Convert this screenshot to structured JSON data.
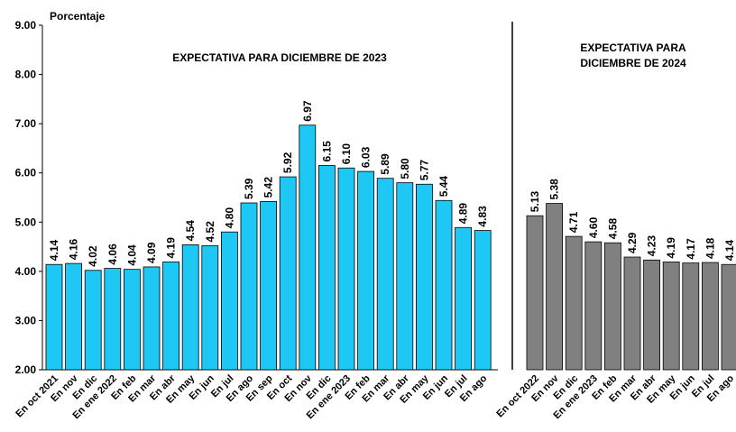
{
  "chart_data": [
    {
      "type": "bar",
      "title": [
        "EXPECTATIVA  PARA  DICIEMBRE DE 2023"
      ],
      "ylabel": "Porcentaje",
      "color": "#1ec8f4",
      "categories": [
        "En oct 2021",
        "En nov",
        "En dic",
        "En ene 2022",
        "En feb",
        "En mar",
        "En abr",
        "En may",
        "En jun",
        "En jul",
        "En ago",
        "En sep",
        "En oct",
        "En nov",
        "En dic",
        "En ene 2023",
        "En feb",
        "En mar",
        "En abr",
        "En may",
        "En jun",
        "En jul",
        "En ago"
      ],
      "values": [
        4.14,
        4.16,
        4.02,
        4.06,
        4.04,
        4.09,
        4.19,
        4.54,
        4.52,
        4.8,
        5.39,
        5.42,
        5.92,
        6.97,
        6.15,
        6.1,
        6.03,
        5.89,
        5.8,
        5.77,
        5.44,
        4.89,
        4.83
      ],
      "value_labels": [
        "4.14",
        "4.16",
        "4.02",
        "4.06",
        "4.04",
        "4.09",
        "4.19",
        "4.54",
        "4.52",
        "4.80",
        "5.39",
        "5.42",
        "5.92",
        "6.97",
        "6.15",
        "6.10",
        "6.03",
        "5.89",
        "5.80",
        "5.77",
        "5.44",
        "4.89",
        "4.83"
      ],
      "ylim": [
        2,
        9
      ],
      "yticks": [
        {
          "value": 2,
          "label": "2.00"
        },
        {
          "value": 3,
          "label": "3.00"
        },
        {
          "value": 4,
          "label": "4.00"
        },
        {
          "value": 5,
          "label": "5.00"
        },
        {
          "value": 6,
          "label": "6.00"
        },
        {
          "value": 7,
          "label": "7.00"
        },
        {
          "value": 8,
          "label": "8.00"
        },
        {
          "value": 9,
          "label": "9.00"
        }
      ]
    },
    {
      "type": "bar",
      "title": [
        "EXPECTATIVA  PARA",
        "DICIEMBRE DE 2024"
      ],
      "color": "#808080",
      "categories": [
        "En oct 2022",
        "En nov",
        "En dic",
        "En ene 2023",
        "En feb",
        "En mar",
        "En abr",
        "En may",
        "En jun",
        "En jul",
        "En ago"
      ],
      "values": [
        5.13,
        5.38,
        4.71,
        4.6,
        4.58,
        4.29,
        4.23,
        4.19,
        4.17,
        4.18,
        4.14
      ],
      "value_labels": [
        "5.13",
        "5.38",
        "4.71",
        "4.60",
        "4.58",
        "4.29",
        "4.23",
        "4.19",
        "4.17",
        "4.18",
        "4.14"
      ],
      "ylim": [
        2,
        9
      ]
    }
  ]
}
